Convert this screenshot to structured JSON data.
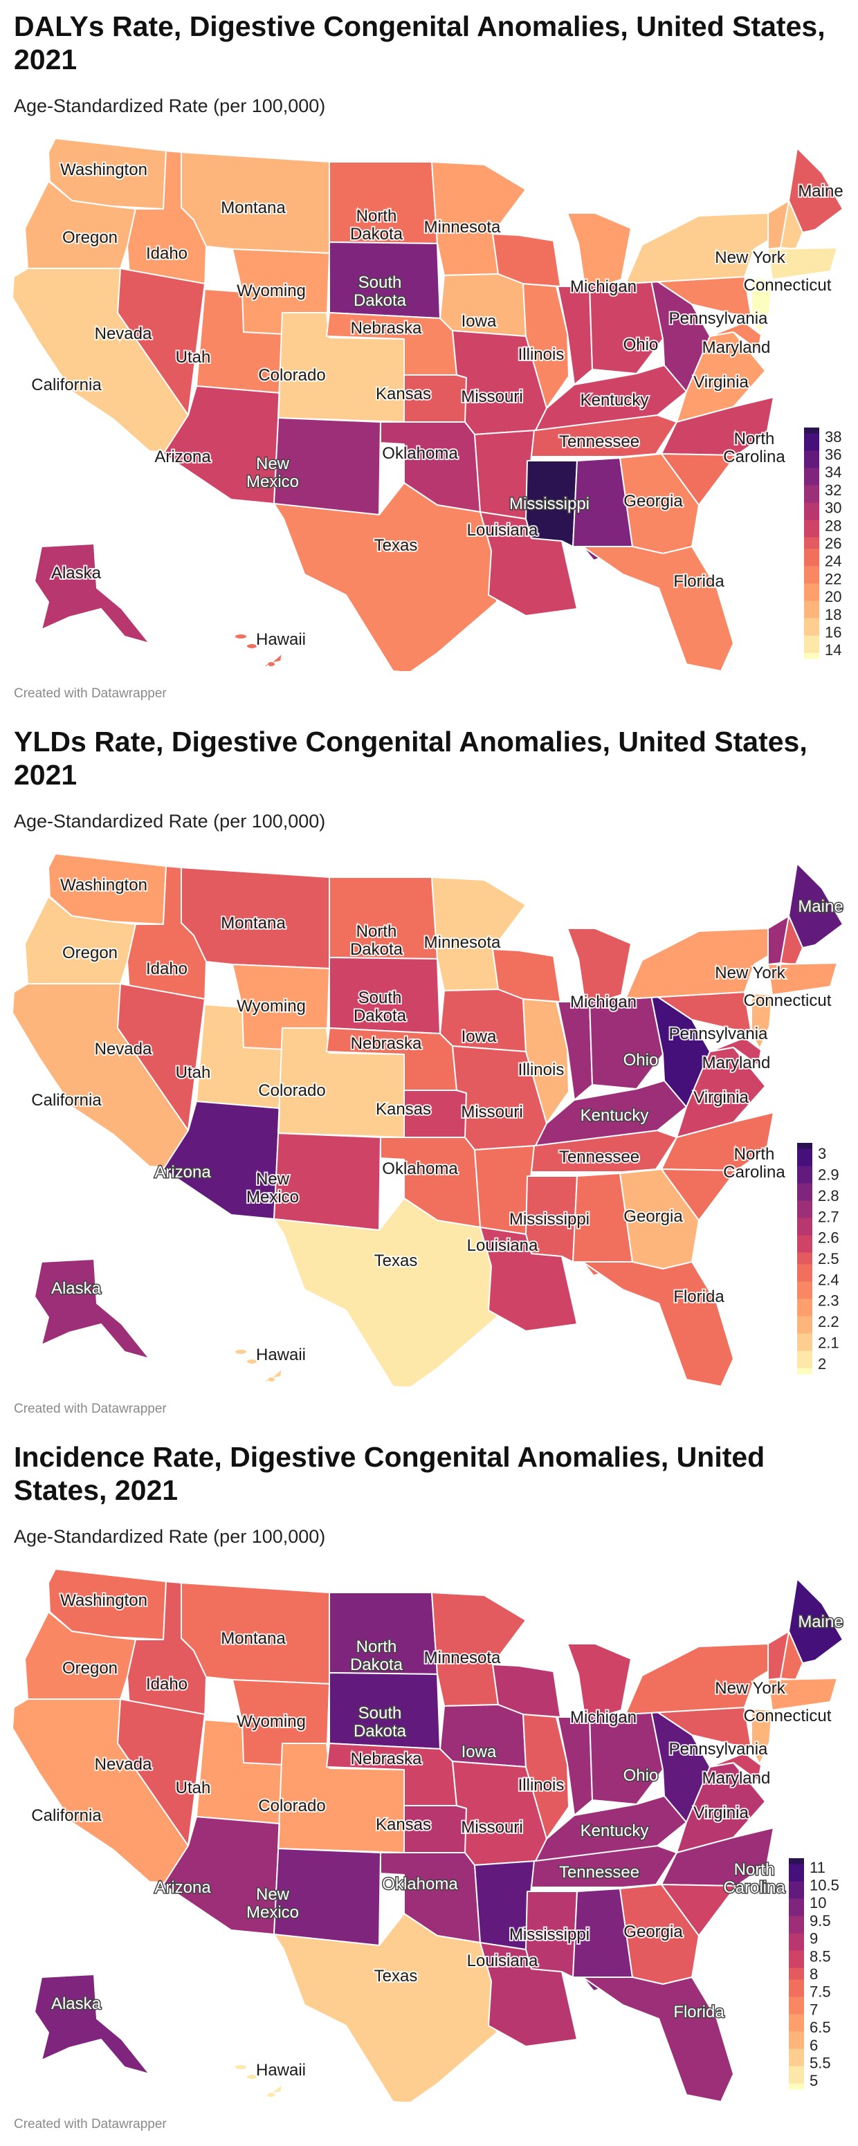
{
  "colors": {
    "scale": [
      "#fcfdbf",
      "#fde7a9",
      "#fece91",
      "#feb57c",
      "#fe9f6d",
      "#fa8763",
      "#f1705d",
      "#e35a5f",
      "#cf4466",
      "#b8376e",
      "#9d2e78",
      "#80257d",
      "#621b7d",
      "#451079",
      "#2b1250"
    ]
  },
  "panels": [
    {
      "title": "DALYs Rate, Digestive Congenital Anomalies, United States, 2021",
      "subtitle": "Age-Standardized Rate (per 100,000)",
      "credit": "Created with Datawrapper",
      "legend": {
        "ticks": [
          "38",
          "36",
          "34",
          "32",
          "30",
          "28",
          "26",
          "24",
          "22",
          "20",
          "18",
          "16",
          "14"
        ],
        "min": 13,
        "max": 39
      },
      "states": {
        "Washington": 19,
        "Oregon": 18,
        "California": 17,
        "Idaho": 21,
        "Nevada": 26,
        "Utah": 22,
        "Arizona": 27,
        "Montana": 19,
        "Wyoming": 21,
        "Colorado": 16,
        "New Mexico": 31,
        "North Dakota": 25,
        "South Dakota": 33,
        "Nebraska": 23,
        "Kansas": 26,
        "Oklahoma": 30,
        "Texas": 23,
        "Minnesota": 20,
        "Iowa": 19,
        "Missouri": 27,
        "Arkansas": 28,
        "Louisiana": 27,
        "Mississippi": 39,
        "Alabama": 33,
        "Georgia": 22,
        "Florida": 22,
        "Tennessee": 26,
        "Kentucky": 28,
        "Illinois": 22,
        "Wisconsin": 25,
        "Michigan": 21,
        "Indiana": 28,
        "Ohio": 27,
        "West Virginia": 31,
        "Virginia": 21,
        "North Carolina": 27,
        "South Carolina": 25,
        "Pennsylvania": 22,
        "New York": 17,
        "Maryland": 22,
        "Maine": 26,
        "New Hampshire": 16,
        "Vermont": 18,
        "Connecticut": 14,
        "New Jersey": 13,
        "Alaska": 29,
        "Hawaii": 24
      }
    },
    {
      "title": "YLDs Rate, Digestive Congenital Anomalies, United States, 2021",
      "subtitle": "Age-Standardized Rate (per 100,000)",
      "credit": "Created with Datawrapper",
      "legend": {
        "ticks": [
          "3",
          "2.9",
          "2.8",
          "2.7",
          "2.6",
          "2.5",
          "2.4",
          "2.3",
          "2.2",
          "2.1",
          "2"
        ],
        "min": 1.95,
        "max": 3.05
      },
      "states": {
        "Washington": 2.3,
        "Oregon": 2.1,
        "California": 2.2,
        "Idaho": 2.4,
        "Nevada": 2.5,
        "Utah": 2.1,
        "Arizona": 2.9,
        "Montana": 2.5,
        "Wyoming": 2.3,
        "Colorado": 2.1,
        "New Mexico": 2.6,
        "North Dakota": 2.4,
        "South Dakota": 2.6,
        "Nebraska": 2.4,
        "Kansas": 2.6,
        "Oklahoma": 2.4,
        "Texas": 2.0,
        "Minnesota": 2.1,
        "Iowa": 2.5,
        "Missouri": 2.5,
        "Arkansas": 2.4,
        "Louisiana": 2.6,
        "Mississippi": 2.5,
        "Alabama": 2.4,
        "Georgia": 2.2,
        "Florida": 2.4,
        "Tennessee": 2.5,
        "Kentucky": 2.7,
        "Illinois": 2.2,
        "Wisconsin": 2.4,
        "Michigan": 2.5,
        "Indiana": 2.7,
        "Ohio": 2.7,
        "West Virginia": 3.0,
        "Virginia": 2.6,
        "North Carolina": 2.4,
        "South Carolina": 2.4,
        "Pennsylvania": 2.5,
        "New York": 2.3,
        "Maryland": 2.6,
        "Maine": 2.9,
        "New Hampshire": 2.5,
        "Vermont": 2.7,
        "Connecticut": 2.3,
        "New Jersey": 2.2,
        "Alaska": 2.7,
        "Hawaii": 2.1
      }
    },
    {
      "title": "Incidence Rate, Digestive Congenital Anomalies, United States, 2021",
      "subtitle": "Age-Standardized Rate (per 100,000)",
      "credit": "Created with Datawrapper",
      "legend": {
        "ticks": [
          "11",
          "10.5",
          "10",
          "9.5",
          "9",
          "8.5",
          "8",
          "7.5",
          "7",
          "6.5",
          "6",
          "5.5",
          "5"
        ],
        "min": 4.75,
        "max": 11.25
      },
      "states": {
        "Washington": 7.5,
        "Oregon": 7.0,
        "California": 6.8,
        "Idaho": 8.0,
        "Nevada": 7.8,
        "Utah": 6.8,
        "Arizona": 9.3,
        "Montana": 7.6,
        "Wyoming": 7.6,
        "Colorado": 6.4,
        "New Mexico": 9.8,
        "North Dakota": 9.7,
        "South Dakota": 10.3,
        "Nebraska": 8.4,
        "Kansas": 9.1,
        "Oklahoma": 9.6,
        "Texas": 5.6,
        "Minnesota": 7.8,
        "Iowa": 9.2,
        "Missouri": 8.6,
        "Arkansas": 10.4,
        "Louisiana": 9.0,
        "Mississippi": 9.0,
        "Alabama": 9.7,
        "Georgia": 8.2,
        "Florida": 9.4,
        "Tennessee": 9.5,
        "Kentucky": 9.3,
        "Illinois": 8.0,
        "Wisconsin": 8.8,
        "Michigan": 8.6,
        "Indiana": 9.3,
        "Ohio": 9.3,
        "West Virginia": 10.2,
        "Virginia": 8.8,
        "North Carolina": 9.3,
        "South Carolina": 8.5,
        "Pennsylvania": 8.0,
        "New York": 7.4,
        "Maryland": 8.3,
        "Maine": 10.8,
        "New Hampshire": 7.7,
        "Vermont": 8.0,
        "Connecticut": 6.6,
        "New Jersey": 6.0,
        "Alaska": 10.0,
        "Hawaii": 5.3
      }
    }
  ]
}
